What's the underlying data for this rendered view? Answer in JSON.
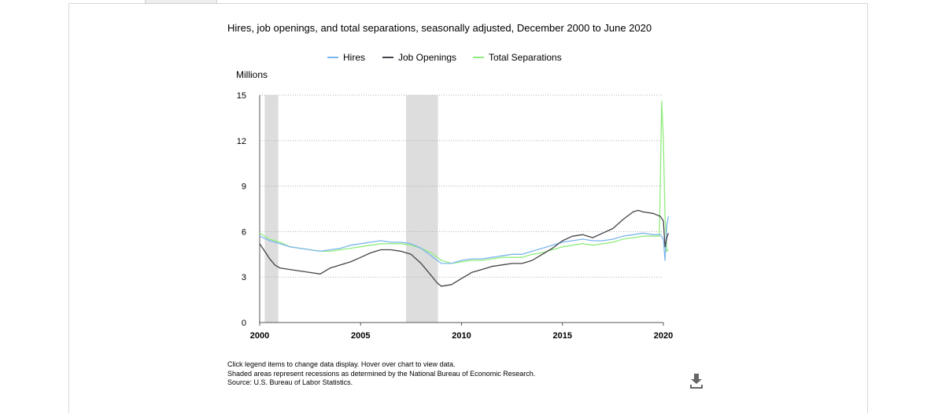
{
  "chart_data": {
    "type": "line",
    "title": "Hires, job openings, and total separations, seasonally adjusted, December 2000 to June 2020",
    "units_label": "Millions",
    "xlim": [
      2000,
      2020
    ],
    "ylim": [
      0,
      15
    ],
    "x_ticks": [
      "2000",
      "2005",
      "2010",
      "2015",
      "2020"
    ],
    "y_ticks": [
      "0",
      "3",
      "6",
      "9",
      "12",
      "15"
    ],
    "grid": "horizontal-dotted",
    "legend_position": "top-center",
    "recessions": [
      [
        2000.25,
        2000.92
      ],
      [
        2007.25,
        2008.83
      ]
    ],
    "series": [
      {
        "name": "Hires",
        "color": "#7cb5ec",
        "points": [
          [
            2000.0,
            5.7
          ],
          [
            2000.5,
            5.4
          ],
          [
            2001.0,
            5.2
          ],
          [
            2001.5,
            5.0
          ],
          [
            2002.0,
            4.9
          ],
          [
            2002.5,
            4.8
          ],
          [
            2003.0,
            4.7
          ],
          [
            2003.5,
            4.8
          ],
          [
            2004.0,
            4.9
          ],
          [
            2004.5,
            5.1
          ],
          [
            2005.0,
            5.2
          ],
          [
            2005.5,
            5.3
          ],
          [
            2006.0,
            5.4
          ],
          [
            2006.5,
            5.3
          ],
          [
            2007.0,
            5.3
          ],
          [
            2007.5,
            5.2
          ],
          [
            2008.0,
            4.9
          ],
          [
            2008.5,
            4.4
          ],
          [
            2009.0,
            3.9
          ],
          [
            2009.5,
            3.9
          ],
          [
            2010.0,
            4.1
          ],
          [
            2010.5,
            4.2
          ],
          [
            2011.0,
            4.2
          ],
          [
            2011.5,
            4.3
          ],
          [
            2012.0,
            4.4
          ],
          [
            2012.5,
            4.5
          ],
          [
            2013.0,
            4.5
          ],
          [
            2013.5,
            4.7
          ],
          [
            2014.0,
            4.9
          ],
          [
            2014.5,
            5.1
          ],
          [
            2015.0,
            5.3
          ],
          [
            2015.5,
            5.4
          ],
          [
            2016.0,
            5.5
          ],
          [
            2016.5,
            5.4
          ],
          [
            2017.0,
            5.4
          ],
          [
            2017.5,
            5.5
          ],
          [
            2018.0,
            5.7
          ],
          [
            2018.5,
            5.8
          ],
          [
            2019.0,
            5.9
          ],
          [
            2019.5,
            5.8
          ],
          [
            2019.85,
            5.8
          ],
          [
            2020.0,
            5.5
          ],
          [
            2020.08,
            4.1
          ],
          [
            2020.17,
            6.4
          ],
          [
            2020.25,
            7.0
          ]
        ]
      },
      {
        "name": "Job Openings",
        "color": "#434348",
        "points": [
          [
            2000.0,
            5.2
          ],
          [
            2000.25,
            4.7
          ],
          [
            2000.5,
            4.2
          ],
          [
            2000.75,
            3.8
          ],
          [
            2001.0,
            3.6
          ],
          [
            2001.5,
            3.5
          ],
          [
            2002.0,
            3.4
          ],
          [
            2002.5,
            3.3
          ],
          [
            2003.0,
            3.2
          ],
          [
            2003.5,
            3.6
          ],
          [
            2004.0,
            3.8
          ],
          [
            2004.5,
            4.0
          ],
          [
            2005.0,
            4.3
          ],
          [
            2005.5,
            4.6
          ],
          [
            2006.0,
            4.8
          ],
          [
            2006.5,
            4.8
          ],
          [
            2007.0,
            4.7
          ],
          [
            2007.5,
            4.5
          ],
          [
            2008.0,
            3.9
          ],
          [
            2008.5,
            3.1
          ],
          [
            2008.8,
            2.6
          ],
          [
            2009.0,
            2.4
          ],
          [
            2009.5,
            2.5
          ],
          [
            2010.0,
            2.9
          ],
          [
            2010.5,
            3.3
          ],
          [
            2011.0,
            3.5
          ],
          [
            2011.5,
            3.7
          ],
          [
            2012.0,
            3.8
          ],
          [
            2012.5,
            3.9
          ],
          [
            2013.0,
            3.9
          ],
          [
            2013.5,
            4.1
          ],
          [
            2014.0,
            4.5
          ],
          [
            2014.5,
            4.9
          ],
          [
            2015.0,
            5.4
          ],
          [
            2015.5,
            5.7
          ],
          [
            2016.0,
            5.8
          ],
          [
            2016.5,
            5.6
          ],
          [
            2017.0,
            5.9
          ],
          [
            2017.5,
            6.2
          ],
          [
            2018.0,
            6.8
          ],
          [
            2018.5,
            7.3
          ],
          [
            2018.75,
            7.4
          ],
          [
            2019.0,
            7.3
          ],
          [
            2019.5,
            7.2
          ],
          [
            2019.85,
            7.0
          ],
          [
            2020.0,
            6.7
          ],
          [
            2020.08,
            5.0
          ],
          [
            2020.17,
            5.6
          ],
          [
            2020.25,
            5.9
          ]
        ]
      },
      {
        "name": "Total Separations",
        "color": "#90ed7d",
        "points": [
          [
            2000.0,
            5.9
          ],
          [
            2000.5,
            5.5
          ],
          [
            2001.0,
            5.3
          ],
          [
            2001.5,
            5.0
          ],
          [
            2002.0,
            4.9
          ],
          [
            2002.5,
            4.8
          ],
          [
            2003.0,
            4.7
          ],
          [
            2003.5,
            4.7
          ],
          [
            2004.0,
            4.8
          ],
          [
            2004.5,
            4.9
          ],
          [
            2005.0,
            5.0
          ],
          [
            2005.5,
            5.1
          ],
          [
            2006.0,
            5.2
          ],
          [
            2006.5,
            5.2
          ],
          [
            2007.0,
            5.2
          ],
          [
            2007.5,
            5.1
          ],
          [
            2008.0,
            4.9
          ],
          [
            2008.5,
            4.6
          ],
          [
            2009.0,
            4.1
          ],
          [
            2009.5,
            3.9
          ],
          [
            2010.0,
            4.0
          ],
          [
            2010.5,
            4.1
          ],
          [
            2011.0,
            4.1
          ],
          [
            2011.5,
            4.2
          ],
          [
            2012.0,
            4.3
          ],
          [
            2012.5,
            4.3
          ],
          [
            2013.0,
            4.3
          ],
          [
            2013.5,
            4.5
          ],
          [
            2014.0,
            4.6
          ],
          [
            2014.5,
            4.8
          ],
          [
            2015.0,
            5.0
          ],
          [
            2015.5,
            5.1
          ],
          [
            2016.0,
            5.2
          ],
          [
            2016.5,
            5.1
          ],
          [
            2017.0,
            5.2
          ],
          [
            2017.5,
            5.3
          ],
          [
            2018.0,
            5.5
          ],
          [
            2018.5,
            5.6
          ],
          [
            2019.0,
            5.7
          ],
          [
            2019.5,
            5.7
          ],
          [
            2019.8,
            5.7
          ],
          [
            2019.92,
            14.6
          ],
          [
            2020.0,
            12.0
          ],
          [
            2020.08,
            7.0
          ],
          [
            2020.17,
            4.7
          ],
          [
            2020.25,
            4.8
          ]
        ]
      }
    ]
  },
  "notes": {
    "line1": "Click legend items to change data display. Hover over chart to view data.",
    "line2": "Shaded areas represent recessions as determined by the National Bureau of Economic Research.",
    "line3": "Source: U.S. Bureau of Labor Statistics."
  },
  "icons": {
    "download": "download-icon"
  }
}
